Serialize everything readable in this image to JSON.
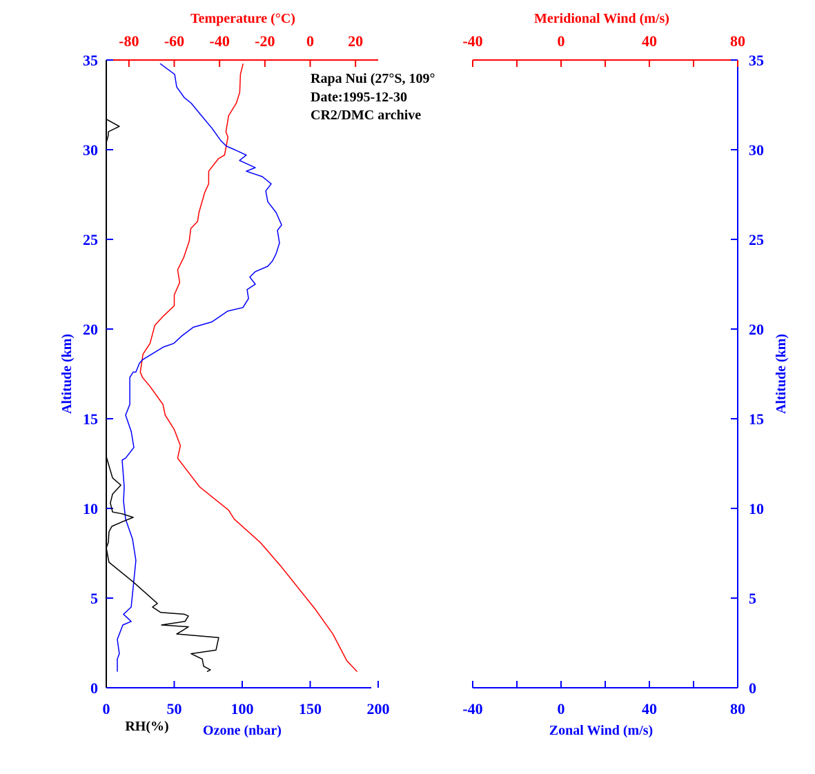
{
  "chart_data": [
    {
      "type": "line",
      "annotation": [
        "Rapa Nui (27°S, 109°",
        "Date:1995-12-30",
        "CR2/DMC archive"
      ],
      "ylabel": "Altitude (km)",
      "ylim": [
        0,
        35
      ],
      "yticks": [
        "0",
        "5",
        "10",
        "15",
        "20",
        "25",
        "30",
        "35"
      ],
      "top_axis": {
        "label": "Temperature (°C)",
        "range": [
          -90,
          30
        ],
        "ticks": [
          "-80",
          "-60",
          "-40",
          "-20",
          "0",
          "20"
        ],
        "color": "#ff0000"
      },
      "bottom_axis": {
        "label": "Ozone (nbar)",
        "range": [
          0,
          200
        ],
        "ticks": [
          "0",
          "50",
          "100",
          "150",
          "200"
        ],
        "color": "#0000ff"
      },
      "secondary_bottom_label": "RH(%)",
      "series": [
        {
          "name": "Temperature (°C)",
          "axis": "top",
          "color": "#ff0000",
          "points": [
            [
              20.7,
              0.9
            ],
            [
              16.2,
              1.5
            ],
            [
              10,
              3.0
            ],
            [
              2.1,
              4.4
            ],
            [
              -13.1,
              6.8
            ],
            [
              -22,
              8.1
            ],
            [
              -33.5,
              9.4
            ],
            [
              -36,
              9.9
            ],
            [
              -48.8,
              11.2
            ],
            [
              -58.5,
              12.8
            ],
            [
              -57.3,
              13.5
            ],
            [
              -60,
              14.4
            ],
            [
              -64,
              15.2
            ],
            [
              -65,
              15.8
            ],
            [
              -70.7,
              16.8
            ],
            [
              -74,
              17.3
            ],
            [
              -75,
              17.6
            ],
            [
              -73.8,
              18.6
            ],
            [
              -70.7,
              19.2
            ],
            [
              -68.6,
              20.2
            ],
            [
              -65,
              20.7
            ],
            [
              -60,
              21.3
            ],
            [
              -60,
              21.9
            ],
            [
              -57.6,
              22.6
            ],
            [
              -58.5,
              23.3
            ],
            [
              -55.8,
              24.0
            ],
            [
              -53.4,
              24.9
            ],
            [
              -52.7,
              25.6
            ],
            [
              -49.7,
              26.0
            ],
            [
              -49.1,
              26.5
            ],
            [
              -46.6,
              27.6
            ],
            [
              -44.8,
              28.1
            ],
            [
              -44.8,
              28.8
            ],
            [
              -40.5,
              29.5
            ],
            [
              -37.8,
              29.7
            ],
            [
              -36.3,
              30.7
            ],
            [
              -37.2,
              31.0
            ],
            [
              -36,
              31.9
            ],
            [
              -32.6,
              32.6
            ],
            [
              -31.1,
              33.2
            ],
            [
              -30.8,
              34.2
            ],
            [
              -29.6,
              34.8
            ]
          ]
        },
        {
          "name": "Ozone (nbar)",
          "axis": "bottom",
          "color": "#0000ff",
          "points": [
            [
              8.1,
              0.9
            ],
            [
              8.1,
              1.6
            ],
            [
              9.6,
              1.9
            ],
            [
              8.1,
              2.7
            ],
            [
              12.2,
              3.5
            ],
            [
              18.3,
              3.7
            ],
            [
              12.7,
              4.1
            ],
            [
              18.3,
              4.5
            ],
            [
              21.8,
              7.1
            ],
            [
              19.3,
              8.3
            ],
            [
              14.2,
              9.4
            ],
            [
              12.7,
              10.4
            ],
            [
              13.2,
              11.2
            ],
            [
              11.7,
              12.7
            ],
            [
              14.2,
              12.8
            ],
            [
              20.3,
              13.4
            ],
            [
              18.3,
              14.3
            ],
            [
              14.2,
              15.2
            ],
            [
              17.3,
              15.8
            ],
            [
              17.3,
              17.3
            ],
            [
              19.8,
              17.6
            ],
            [
              21.8,
              17.6
            ],
            [
              24.4,
              18.1
            ],
            [
              26.9,
              18.3
            ],
            [
              42.1,
              19.0
            ],
            [
              49.7,
              19.2
            ],
            [
              55.3,
              19.6
            ],
            [
              64,
              20.1
            ],
            [
              77.7,
              20.4
            ],
            [
              89.3,
              21.0
            ],
            [
              100.5,
              21.2
            ],
            [
              104.6,
              21.7
            ],
            [
              103.6,
              22.2
            ],
            [
              109.6,
              22.5
            ],
            [
              105.6,
              22.9
            ],
            [
              109.6,
              23.2
            ],
            [
              118.8,
              23.5
            ],
            [
              122.3,
              23.8
            ],
            [
              124.9,
              24.2
            ],
            [
              127.4,
              24.8
            ],
            [
              125.9,
              25.5
            ],
            [
              129,
              25.8
            ],
            [
              124.9,
              26.5
            ],
            [
              118.8,
              27.1
            ],
            [
              117.3,
              27.7
            ],
            [
              121.3,
              28.1
            ],
            [
              114.7,
              28.5
            ],
            [
              103,
              28.8
            ],
            [
              109.6,
              29.0
            ],
            [
              98,
              29.4
            ],
            [
              103,
              29.7
            ],
            [
              94.4,
              30.0
            ],
            [
              88.3,
              30.2
            ],
            [
              84.3,
              30.5
            ],
            [
              77.7,
              31.2
            ],
            [
              70,
              31.9
            ],
            [
              62.4,
              32.6
            ],
            [
              57.4,
              32.9
            ],
            [
              51.8,
              33.5
            ],
            [
              50.3,
              34.2
            ],
            [
              39.6,
              34.8
            ]
          ]
        },
        {
          "name": "RH(%)",
          "axis": "bottom",
          "color": "#000000",
          "segments": [
            [
              [
                74.1,
                0.9
              ],
              [
                76.6,
                1.0
              ],
              [
                71.6,
                1.2
              ],
              [
                70.6,
                1.6
              ],
              [
                62.4,
                1.9
              ],
              [
                80.7,
                2.1
              ],
              [
                82.7,
                2.8
              ],
              [
                51.8,
                3.0
              ],
              [
                56.3,
                3.2
              ],
              [
                60.4,
                3.4
              ],
              [
                40.6,
                3.5
              ],
              [
                57.9,
                3.7
              ],
              [
                60.4,
                4.0
              ],
              [
                57.4,
                4.1
              ],
              [
                40,
                4.2
              ],
              [
                34,
                4.5
              ],
              [
                37.6,
                4.7
              ],
              [
                19.8,
                5.9
              ],
              [
                2,
                7.0
              ],
              [
                0,
                7.8
              ],
              [
                1.5,
                8.1
              ],
              [
                2,
                8.7
              ],
              [
                4.1,
                9.0
              ],
              [
                13.2,
                9.3
              ],
              [
                19.8,
                9.5
              ],
              [
                11.7,
                9.7
              ],
              [
                4.6,
                9.8
              ],
              [
                3,
                10.3
              ],
              [
                4.6,
                10.8
              ],
              [
                10.7,
                11.3
              ],
              [
                4.6,
                11.7
              ],
              [
                1.5,
                12.5
              ],
              [
                0,
                12.9
              ]
            ],
            [
              [
                0,
                30.4
              ],
              [
                1.5,
                30.8
              ],
              [
                1.5,
                31.0
              ],
              [
                9.6,
                31.3
              ],
              [
                0,
                31.7
              ]
            ]
          ]
        }
      ]
    },
    {
      "type": "line",
      "ylabel": "Altitude (km)",
      "ylim": [
        0,
        35
      ],
      "yticks": [
        "0",
        "5",
        "10",
        "15",
        "20",
        "25",
        "30",
        "35"
      ],
      "top_axis": {
        "label": "Meridional Wind (m/s)",
        "range": [
          -40,
          80
        ],
        "ticks": [
          "-40",
          "0",
          "40",
          "80"
        ],
        "color": "#ff0000"
      },
      "bottom_axis": {
        "label": "Zonal Wind (m/s)",
        "range": [
          -40,
          80
        ],
        "ticks": [
          "-40",
          "0",
          "40",
          "80"
        ],
        "color": "#0000ff"
      },
      "series": []
    }
  ]
}
